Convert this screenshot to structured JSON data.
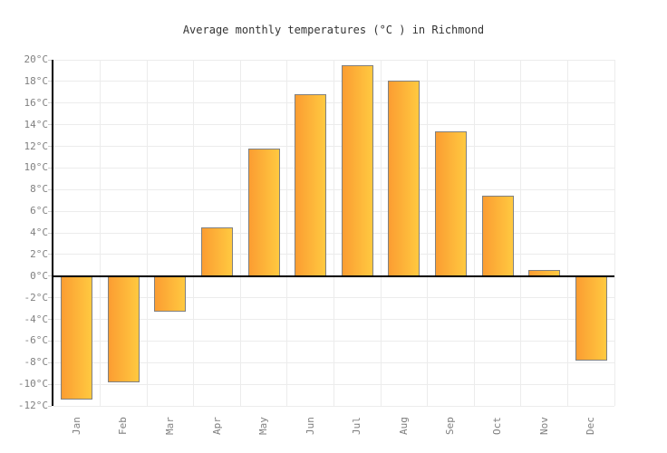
{
  "title": "Average monthly temperatures (°C ) in Richmond",
  "colors": {
    "bar_gradient_left": "#fb9d32",
    "bar_gradient_right": "#ffc940",
    "bar_border": "#808080",
    "axis_line": "#000000",
    "zero_line": "#000000",
    "gridline": "#ececec",
    "tick_label": "#808080",
    "title_text": "#333333",
    "background": "#ffffff"
  },
  "chart_data": {
    "type": "bar",
    "title": "Average monthly temperatures (°C ) in Richmond",
    "xlabel": "",
    "ylabel": "",
    "categories": [
      "Jan",
      "Feb",
      "Mar",
      "Apr",
      "May",
      "Jun",
      "Jul",
      "Aug",
      "Sep",
      "Oct",
      "Nov",
      "Dec"
    ],
    "values": [
      -11.4,
      -9.8,
      -3.3,
      4.5,
      11.8,
      16.8,
      19.5,
      18.1,
      13.4,
      7.4,
      0.6,
      -7.8
    ],
    "ylim": [
      -12,
      20
    ],
    "y_tick_step": 2,
    "y_tick_values": [
      20,
      18,
      16,
      14,
      12,
      10,
      8,
      6,
      4,
      2,
      0,
      -2,
      -4,
      -6,
      -8,
      -10,
      -12
    ],
    "y_tick_labels": [
      "20°C",
      "18°C",
      "16°C",
      "14°C",
      "12°C",
      "10°C",
      "8°C",
      "6°C",
      "4°C",
      "2°C",
      "0°C",
      "-2°C",
      "-4°C",
      "-6°C",
      "-8°C",
      "-10°C",
      "-12°C"
    ],
    "grid": true,
    "legend": false,
    "x_labels_rotated": true
  }
}
